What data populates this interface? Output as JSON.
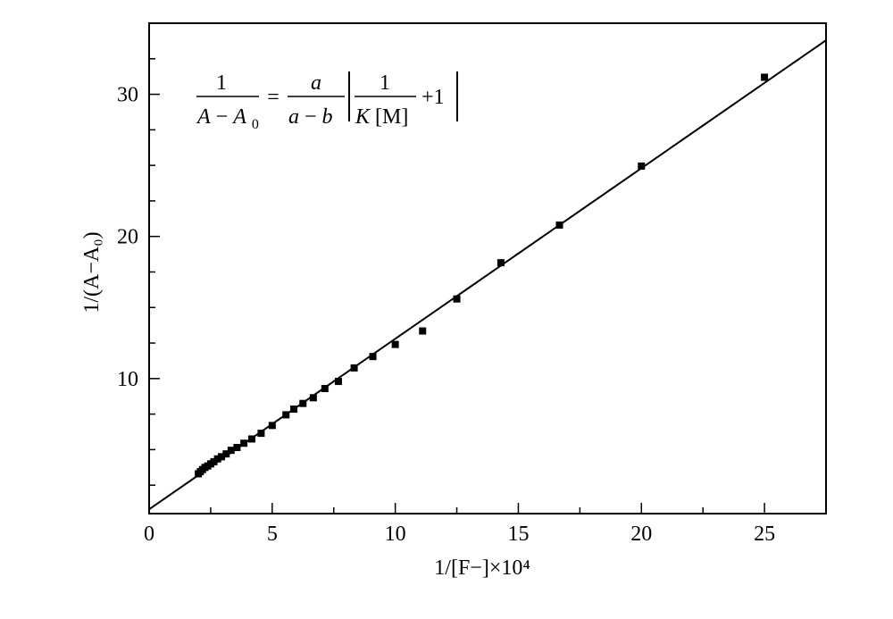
{
  "chart_data": {
    "type": "scatter",
    "xlabel": "1/[F−]×10⁴",
    "ylabel": "1/(A−A₀)",
    "xlim": [
      0,
      27.5
    ],
    "ylim": [
      0.5,
      35
    ],
    "x_ticks": [
      0,
      5,
      10,
      15,
      20,
      25
    ],
    "y_ticks": [
      10,
      20,
      30
    ],
    "x_tick_labels": [
      "0",
      "5",
      "10",
      "15",
      "20",
      "25"
    ],
    "y_tick_labels": [
      "10",
      "20",
      "30"
    ],
    "x_minor_step": 2.5,
    "y_minor_step": 2.5,
    "grid": false,
    "legend": "none",
    "marker_color": "#000000",
    "line_color": "#000000",
    "equation": {
      "lhs_num": "1",
      "lhs_den_A": "A",
      "lhs_den_minus": "−",
      "lhs_den_A0": "A",
      "lhs_den_sub": "0",
      "equals": "=",
      "r1_num": "a",
      "r1_den_a": "a",
      "r1_den_minus": "−",
      "r1_den_b": "b",
      "r2_num": "1",
      "r2_den_K": "K",
      "r2_den_M": "[M]",
      "plus_one": "+1"
    },
    "series": [
      {
        "x": [
          2.0,
          2.08,
          2.17,
          2.27,
          2.38,
          2.5,
          2.63,
          2.78,
          2.94,
          3.13,
          3.33,
          3.57,
          3.85,
          4.17,
          4.55,
          5.0,
          5.56,
          5.88,
          6.25,
          6.67,
          7.14,
          7.69,
          8.33,
          9.09,
          10.0,
          11.11,
          12.5,
          14.29,
          16.67,
          20.0,
          25.0
        ],
        "y": [
          3.3,
          3.45,
          3.6,
          3.75,
          3.85,
          4.0,
          4.15,
          4.35,
          4.5,
          4.7,
          4.95,
          5.15,
          5.45,
          5.75,
          6.15,
          6.7,
          7.45,
          7.85,
          8.25,
          8.65,
          9.3,
          9.8,
          10.75,
          11.55,
          12.4,
          13.35,
          15.6,
          18.15,
          20.8,
          24.95,
          31.2
        ]
      }
    ],
    "fit_line": {
      "slope": 1.2,
      "intercept": 0.8,
      "x_range": [
        0,
        27.5
      ]
    }
  }
}
